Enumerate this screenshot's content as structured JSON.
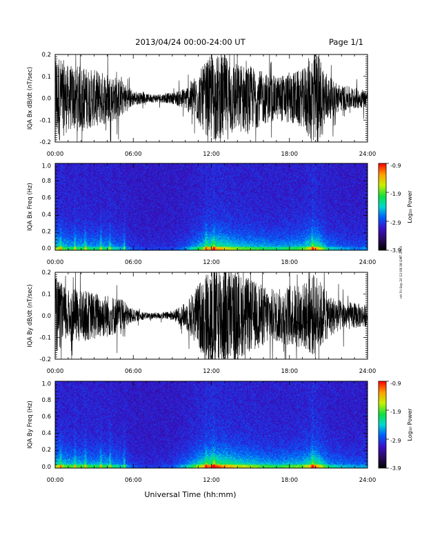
{
  "header": {
    "title": "2013/04/24  00:00-24:00 UT",
    "page": "Page 1/1"
  },
  "footer": {
    "xlabel": "Universal Time (hh:mm)"
  },
  "side_note": "mt Fri Sep 20 12:08:38 GMT 2019",
  "chart_data": [
    {
      "type": "line",
      "ylabel": "IQA Bx dB/dt (nT/sec)",
      "xlim": [
        0,
        24
      ],
      "ylim": [
        -0.2,
        0.2
      ],
      "y_ticks": [
        "-0.2",
        "-0.1",
        "0.0",
        "0.1",
        "0.2"
      ],
      "x_ticks": [
        "00:00",
        "06:00",
        "12:00",
        "18:00",
        "24:00"
      ],
      "amplitude_envelope": {
        "hours": [
          0,
          1,
          2,
          3,
          4,
          5,
          6,
          7,
          8,
          9,
          10,
          11,
          12,
          13,
          14,
          15,
          16,
          17,
          18,
          19,
          20,
          21,
          22,
          23,
          24
        ],
        "amplitude": [
          0.22,
          0.15,
          0.15,
          0.13,
          0.12,
          0.09,
          0.035,
          0.02,
          0.02,
          0.025,
          0.05,
          0.12,
          0.2,
          0.2,
          0.16,
          0.15,
          0.12,
          0.1,
          0.12,
          0.13,
          0.25,
          0.1,
          0.06,
          0.05,
          0.04
        ]
      }
    },
    {
      "type": "heatmap",
      "ylabel": "IQA Bx Freq (Hz)",
      "xlim": [
        0,
        24
      ],
      "ylim": [
        0,
        1.0
      ],
      "y_ticks": [
        "0.0",
        "0.2",
        "0.4",
        "0.6",
        "0.8",
        "1.0"
      ],
      "x_ticks": [
        "00:00",
        "06:00",
        "12:00",
        "18:00",
        "24:00"
      ],
      "colorbar": {
        "label": "Log₁₀ Power",
        "min": -3.9,
        "max": -0.9,
        "ticks": [
          "-0.9",
          "-1.9",
          "-2.9",
          "-3.9"
        ]
      },
      "activity": {
        "hours": [
          0,
          1,
          2,
          3,
          4,
          5,
          6,
          7,
          8,
          9,
          10,
          11,
          12,
          13,
          14,
          15,
          16,
          17,
          18,
          19,
          20,
          21,
          22,
          23,
          24
        ],
        "level": [
          0.6,
          0.45,
          0.45,
          0.4,
          0.4,
          0.3,
          0.12,
          0.08,
          0.08,
          0.1,
          0.2,
          0.45,
          0.8,
          0.7,
          0.55,
          0.5,
          0.45,
          0.4,
          0.45,
          0.5,
          0.8,
          0.35,
          0.25,
          0.2,
          0.2
        ]
      },
      "bursts_hours": [
        0.4,
        1.5,
        2.3,
        3.5,
        4.2,
        5.3,
        11.6,
        12.2,
        19.8
      ]
    },
    {
      "type": "line",
      "ylabel": "IQA By dB/dt (nT/sec)",
      "xlim": [
        0,
        24
      ],
      "ylim": [
        -0.2,
        0.2
      ],
      "y_ticks": [
        "-0.2",
        "-0.1",
        "0.0",
        "0.1",
        "0.2"
      ],
      "x_ticks": [
        "00:00",
        "06:00",
        "12:00",
        "18:00",
        "24:00"
      ],
      "amplitude_envelope": {
        "hours": [
          0,
          1,
          2,
          3,
          4,
          5,
          6,
          7,
          8,
          9,
          10,
          11,
          12,
          13,
          14,
          15,
          16,
          17,
          18,
          19,
          20,
          21,
          22,
          23,
          24
        ],
        "amplitude": [
          0.18,
          0.12,
          0.12,
          0.11,
          0.1,
          0.08,
          0.03,
          0.015,
          0.015,
          0.02,
          0.06,
          0.15,
          0.25,
          0.25,
          0.2,
          0.17,
          0.14,
          0.12,
          0.14,
          0.15,
          0.2,
          0.1,
          0.07,
          0.06,
          0.05
        ]
      }
    },
    {
      "type": "heatmap",
      "ylabel": "IQA By Freq (Hz)",
      "xlim": [
        0,
        24
      ],
      "ylim": [
        0,
        1.0
      ],
      "y_ticks": [
        "0.0",
        "0.2",
        "0.4",
        "0.6",
        "0.8",
        "1.0"
      ],
      "x_ticks": [
        "00:00",
        "06:00",
        "12:00",
        "18:00",
        "24:00"
      ],
      "colorbar": {
        "label": "Log₁₀ Power",
        "min": -3.9,
        "max": -0.9,
        "ticks": [
          "-0.9",
          "-1.9",
          "-2.9",
          "-3.9"
        ]
      },
      "activity": {
        "hours": [
          0,
          1,
          2,
          3,
          4,
          5,
          6,
          7,
          8,
          9,
          10,
          11,
          12,
          13,
          14,
          15,
          16,
          17,
          18,
          19,
          20,
          21,
          22,
          23,
          24
        ],
        "level": [
          0.65,
          0.5,
          0.5,
          0.45,
          0.45,
          0.35,
          0.12,
          0.08,
          0.08,
          0.12,
          0.3,
          0.6,
          0.9,
          0.8,
          0.65,
          0.6,
          0.5,
          0.45,
          0.5,
          0.55,
          0.85,
          0.4,
          0.3,
          0.25,
          0.25
        ]
      },
      "bursts_hours": [
        0.4,
        1.5,
        2.3,
        3.5,
        4.2,
        5.3,
        11.6,
        12.2,
        19.8
      ]
    }
  ]
}
